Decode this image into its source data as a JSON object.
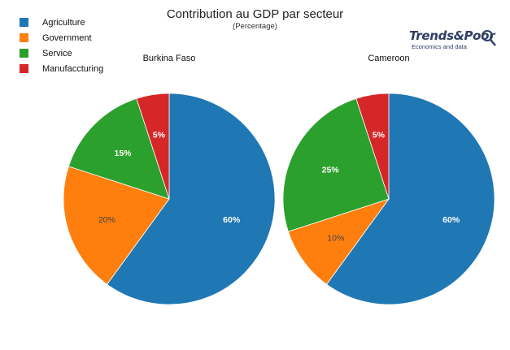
{
  "title": "Contribution au GDP par secteur",
  "subtitle": "(Percentage)",
  "brand": {
    "name": "Trends&Poor",
    "tagline": "Economics and data",
    "color": "#2d3e66"
  },
  "chart_data": {
    "type": "pie",
    "legend_position": "top-left",
    "categories": [
      "Agriculture",
      "Government",
      "Service",
      "Manufaccturing"
    ],
    "colors": [
      "#1f77b4",
      "#ff7f0e",
      "#2ca02c",
      "#d62728"
    ],
    "series": [
      {
        "name": "Burkina Faso",
        "values": [
          60,
          20,
          15,
          5
        ],
        "labels": [
          "60%",
          "20%",
          "15%",
          "5%"
        ]
      },
      {
        "name": "Cameroon",
        "values": [
          60,
          10,
          25,
          5
        ],
        "labels": [
          "60%",
          "10%",
          "25%",
          "5%"
        ]
      }
    ]
  }
}
